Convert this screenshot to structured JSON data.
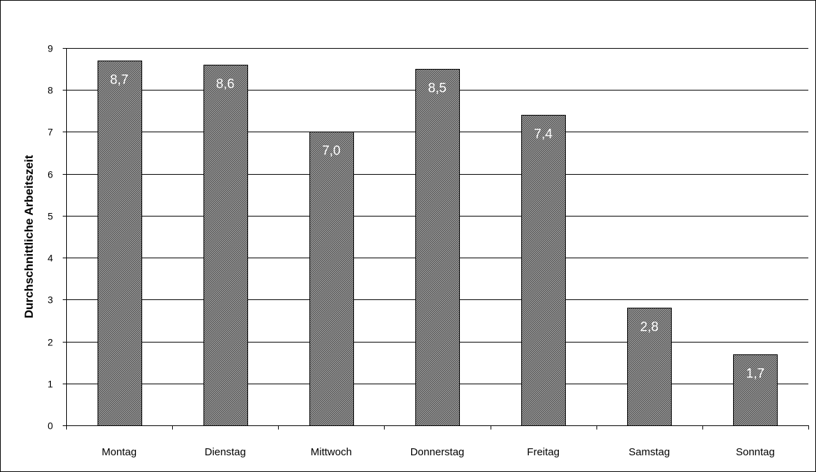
{
  "chart_data": {
    "type": "bar",
    "title": "",
    "xlabel": "",
    "ylabel": "Durchschnittliche Arbeitszeit",
    "categories": [
      "Montag",
      "Dienstag",
      "Mittwoch",
      "Donnerstag",
      "Freitag",
      "Samstag",
      "Sonntag"
    ],
    "values": [
      8.7,
      8.6,
      7.0,
      8.5,
      7.4,
      2.8,
      1.7
    ],
    "value_labels": [
      "8,7",
      "8,6",
      "7,0",
      "8,5",
      "7,4",
      "2,8",
      "1,7"
    ],
    "yticks": [
      "0",
      "1",
      "2",
      "3",
      "4",
      "5",
      "6",
      "7",
      "8",
      "9"
    ],
    "ylim": [
      0,
      9
    ],
    "grid": true,
    "legend": "none",
    "colors": {
      "bar_fill": "#9a9a9a",
      "bar_pattern": "#3a3a3a",
      "bar_stroke": "#000000",
      "gridline": "#000000",
      "data_label": "#ffffff"
    }
  }
}
